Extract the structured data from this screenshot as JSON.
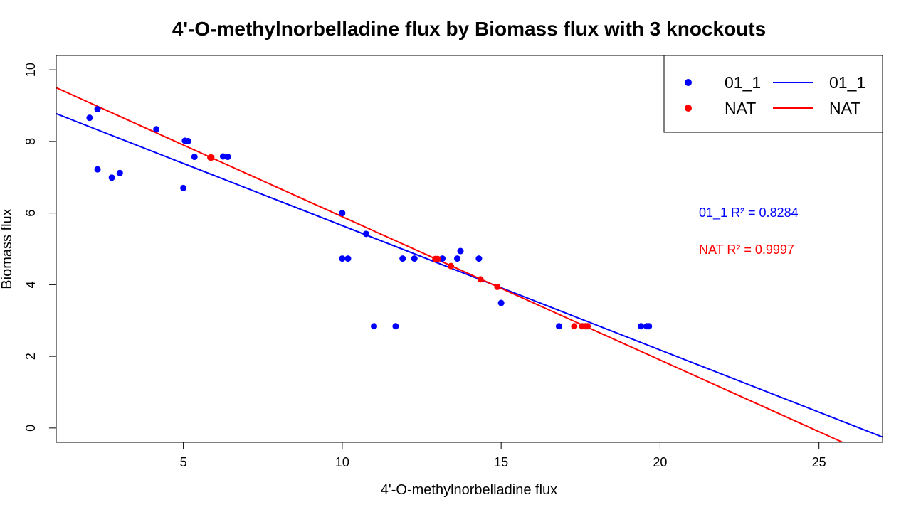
{
  "chart_data": {
    "type": "scatter",
    "title": "4'-O-methylnorbelladine flux by Biomass flux with 3 knockouts",
    "xlabel": "4'-O-methylnorbelladine flux",
    "ylabel": "Biomass flux",
    "xlim": [
      1.0,
      27.0
    ],
    "ylim": [
      -0.4,
      10.4
    ],
    "xticks": [
      5,
      10,
      15,
      20,
      25
    ],
    "yticks": [
      0,
      2,
      4,
      6,
      8,
      10
    ],
    "xtick_labels": [
      "5",
      "10",
      "15",
      "20",
      "25"
    ],
    "ytick_labels": [
      "0",
      "2",
      "4",
      "6",
      "8",
      "10"
    ],
    "grid": false,
    "legend": {
      "position": "top-right",
      "point_entries": [
        "01_1",
        "NAT"
      ],
      "line_entries": [
        "01_1",
        "NAT"
      ]
    },
    "series": [
      {
        "name": "01_1",
        "color": "#0000ff",
        "points": [
          [
            2.05,
            8.66
          ],
          [
            2.3,
            8.9
          ],
          [
            2.3,
            7.22
          ],
          [
            2.75,
            6.99
          ],
          [
            3.0,
            7.12
          ],
          [
            4.15,
            8.34
          ],
          [
            5.05,
            8.02
          ],
          [
            5.15,
            8.01
          ],
          [
            5.0,
            6.7
          ],
          [
            5.35,
            7.57
          ],
          [
            6.25,
            7.58
          ],
          [
            6.4,
            7.57
          ],
          [
            10.0,
            6.0
          ],
          [
            10.0,
            4.73
          ],
          [
            10.18,
            4.73
          ],
          [
            10.75,
            5.42
          ],
          [
            11.0,
            2.84
          ],
          [
            11.68,
            2.84
          ],
          [
            11.9,
            4.73
          ],
          [
            12.27,
            4.73
          ],
          [
            13.15,
            4.73
          ],
          [
            13.62,
            4.73
          ],
          [
            13.72,
            4.94
          ],
          [
            14.3,
            4.73
          ],
          [
            15.0,
            3.49
          ],
          [
            16.82,
            2.84
          ],
          [
            19.4,
            2.84
          ],
          [
            19.58,
            2.84
          ],
          [
            19.65,
            2.84
          ]
        ],
        "fit": {
          "slope": -0.3472,
          "intercept": 9.1223,
          "r2_label": "01_1  R² = 0.8284"
        }
      },
      {
        "name": "NAT",
        "color": "#ff0000",
        "points": [
          [
            5.85,
            7.55
          ],
          [
            5.88,
            7.55
          ],
          [
            12.93,
            4.72
          ],
          [
            13.0,
            4.72
          ],
          [
            13.42,
            4.52
          ],
          [
            14.35,
            4.15
          ],
          [
            14.88,
            3.94
          ],
          [
            17.3,
            2.84
          ],
          [
            17.55,
            2.84
          ],
          [
            17.65,
            2.84
          ],
          [
            17.72,
            2.84
          ]
        ],
        "fit": {
          "slope": -0.4001,
          "intercept": 9.9001,
          "r2_label": "NAT   R² = 0.9997"
        }
      }
    ]
  }
}
